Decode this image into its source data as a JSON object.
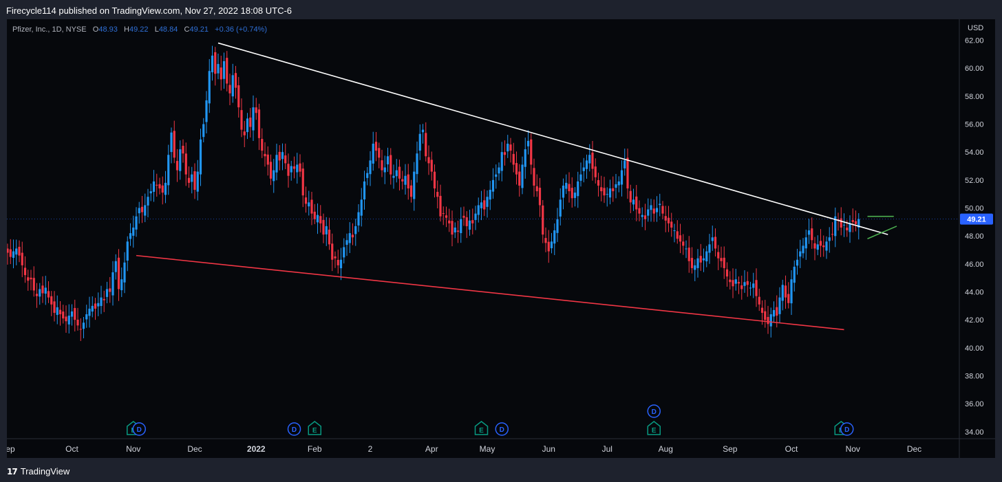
{
  "header": {
    "published": "Firecycle114 published on TradingView.com, Nov 27, 2022 18:08 UTC-6"
  },
  "legend": {
    "symbol": "Pfizer, Inc., 1D, NYSE",
    "open_label": "O",
    "open": "48.93",
    "high_label": "H",
    "high": "49.22",
    "low_label": "L",
    "low": "48.84",
    "close_label": "C",
    "close": "49.21",
    "change": "+0.36 (+0.74%)"
  },
  "currency": "USD",
  "footer": {
    "brand": "TradingView",
    "logo_mark": "17"
  },
  "colors": {
    "background": "#06080c",
    "up": "#2196f3",
    "down": "#f23645",
    "resistance_line": "#ffffff",
    "support_line": "#f23645",
    "flag_lines": "#4caf50",
    "price_badge": "#2962ff",
    "event_earnings": "#089981",
    "event_dividend": "#2962ff"
  },
  "chart_data": {
    "type": "candlestick",
    "title": "Pfizer, Inc., 1D, NYSE",
    "ylim": [
      33.5,
      63.5
    ],
    "y_ticks": [
      "34.00",
      "36.00",
      "38.00",
      "40.00",
      "42.00",
      "44.00",
      "46.00",
      "48.00",
      "50.00",
      "52.00",
      "54.00",
      "56.00",
      "58.00",
      "60.00",
      "62.00"
    ],
    "x_ticks": [
      "Sep",
      "Oct",
      "Nov",
      "Dec",
      "2022",
      "Feb",
      "2",
      "Apr",
      "May",
      "Jun",
      "Jul",
      "Aug",
      "Sep",
      "Oct",
      "Nov",
      "Dec"
    ],
    "x_tick_index": [
      0,
      22,
      43,
      64,
      85,
      105,
      124,
      145,
      164,
      185,
      205,
      225,
      247,
      268,
      289,
      310
    ],
    "last_price": "49.21",
    "closes": [
      46.8,
      46.5,
      46.9,
      47.1,
      46.6,
      45.9,
      45.2,
      44.8,
      44.9,
      44.1,
      43.7,
      44.2,
      43.9,
      44.3,
      43.6,
      43.1,
      42.5,
      42.9,
      42.4,
      42.1,
      41.9,
      42.3,
      42.6,
      42.0,
      41.6,
      41.3,
      41.8,
      42.4,
      42.8,
      43.0,
      42.8,
      43.2,
      43.6,
      43.4,
      44.2,
      44.0,
      45.4,
      46.2,
      44.2,
      44.9,
      46.1,
      47.6,
      48.2,
      48.6,
      49.4,
      50.0,
      49.7,
      50.2,
      50.8,
      51.2,
      51.9,
      51.6,
      51.4,
      51.1,
      51.8,
      53.8,
      55.4,
      53.6,
      52.7,
      54.2,
      53.9,
      52.4,
      51.8,
      52.4,
      51.3,
      52.6,
      54.9,
      56.0,
      57.7,
      59.8,
      60.9,
      59.6,
      60.3,
      59.2,
      60.5,
      58.9,
      58.2,
      59.5,
      58.6,
      57.2,
      55.6,
      55.2,
      56.4,
      55.8,
      57.2,
      56.8,
      55.0,
      54.1,
      53.7,
      53.1,
      52.1,
      52.7,
      53.8,
      53.4,
      54.0,
      53.2,
      52.3,
      53.0,
      52.8,
      53.1,
      52.6,
      50.9,
      50.3,
      50.4,
      49.6,
      49.2,
      49.5,
      48.9,
      48.1,
      48.7,
      47.4,
      46.3,
      46.4,
      45.9,
      46.3,
      47.2,
      47.7,
      48.2,
      47.9,
      48.7,
      49.7,
      50.6,
      51.9,
      52.5,
      53.4,
      54.6,
      54.1,
      53.6,
      52.7,
      52.9,
      53.7,
      52.4,
      52.3,
      52.7,
      52.1,
      51.9,
      52.3,
      51.4,
      50.8,
      52.6,
      53.9,
      55.3,
      55.6,
      53.7,
      53.2,
      52.6,
      51.4,
      50.8,
      49.4,
      49.6,
      49.3,
      48.9,
      48.1,
      48.6,
      48.3,
      49.2,
      49.3,
      48.7,
      49.1,
      48.9,
      49.6,
      50.2,
      50.4,
      49.9,
      50.8,
      51.3,
      52.0,
      52.4,
      52.9,
      54.0,
      53.8,
      54.6,
      54.1,
      53.1,
      52.4,
      51.6,
      53.1,
      54.2,
      54.8,
      53.1,
      51.6,
      51.2,
      50.2,
      48.1,
      47.5,
      46.9,
      47.6,
      48.4,
      49.2,
      50.6,
      51.6,
      51.8,
      51.2,
      50.7,
      51.1,
      51.9,
      52.4,
      52.9,
      53.4,
      53.8,
      52.8,
      52.2,
      51.6,
      51.2,
      50.9,
      51.0,
      51.4,
      51.2,
      51.7,
      51.9,
      52.7,
      53.4,
      51.4,
      50.4,
      50.6,
      49.9,
      49.6,
      49.5,
      49.2,
      49.9,
      50.2,
      49.6,
      50.0,
      50.3,
      49.6,
      49.1,
      48.9,
      48.6,
      48.4,
      47.8,
      47.6,
      47.3,
      47.1,
      46.2,
      45.7,
      45.9,
      46.4,
      46.1,
      46.4,
      46.9,
      47.4,
      47.9,
      47.1,
      46.4,
      46.2,
      45.7,
      45.1,
      44.7,
      44.4,
      44.9,
      44.6,
      44.2,
      44.7,
      44.5,
      44.3,
      44.6,
      43.7,
      43.1,
      42.5,
      42.0,
      41.7,
      42.4,
      42.7,
      42.3,
      43.6,
      44.5,
      43.6,
      43.2,
      44.9,
      45.8,
      46.3,
      46.9,
      47.3,
      47.9,
      48.4,
      47.7,
      47.1,
      47.4,
      47.3,
      47.2,
      47.6,
      47.9,
      48.1,
      49.4,
      49.1,
      48.6,
      48.8,
      48.4,
      48.9,
      49.0,
      48.85,
      49.21
    ],
    "annotations": [
      {
        "type": "trendline",
        "name": "resistance",
        "color": "#ffffff",
        "from": [
          72,
          61.8
        ],
        "to": [
          301,
          48.1
        ]
      },
      {
        "type": "trendline",
        "name": "support",
        "color": "#f23645",
        "from": [
          44,
          46.6
        ],
        "to": [
          286,
          41.3
        ]
      },
      {
        "type": "trendline",
        "name": "flag-top",
        "color": "#4caf50",
        "from": [
          294,
          49.4
        ],
        "to": [
          303,
          49.4
        ]
      },
      {
        "type": "trendline",
        "name": "flag-bottom",
        "color": "#4caf50",
        "from": [
          294,
          47.8
        ],
        "to": [
          304,
          48.7
        ]
      }
    ],
    "events": [
      {
        "type": "E",
        "index": 43,
        "row": 0
      },
      {
        "type": "D",
        "index": 45,
        "row": 0
      },
      {
        "type": "D",
        "index": 98,
        "row": 0
      },
      {
        "type": "E",
        "index": 105,
        "row": 0
      },
      {
        "type": "E",
        "index": 162,
        "row": 0
      },
      {
        "type": "D",
        "index": 169,
        "row": 0
      },
      {
        "type": "E",
        "index": 221,
        "row": 0
      },
      {
        "type": "D",
        "index": 221,
        "row": 1
      },
      {
        "type": "E",
        "index": 285,
        "row": 0
      },
      {
        "type": "D",
        "index": 287,
        "row": 0
      }
    ]
  }
}
